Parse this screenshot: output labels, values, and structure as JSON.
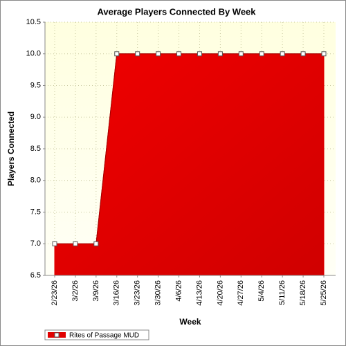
{
  "chart_data": {
    "type": "area",
    "title": "Average Players Connected By Week",
    "x_label": "Week",
    "y_label": "Players Connected",
    "categories": [
      "2/23/26",
      "3/2/26",
      "3/9/26",
      "3/16/26",
      "3/23/26",
      "3/30/26",
      "4/6/26",
      "4/13/26",
      "4/20/26",
      "4/27/26",
      "5/4/26",
      "5/11/26",
      "5/18/26",
      "5/25/26"
    ],
    "series": [
      {
        "name": "Rites of Passage MUD",
        "color": "#e00000",
        "values": [
          7,
          7,
          7,
          10,
          10,
          10,
          10,
          10,
          10,
          10,
          10,
          10,
          10,
          10
        ]
      }
    ],
    "ylim": [
      6.5,
      10.5
    ],
    "yticks": [
      6.5,
      {
        "value": 7,
        "label": "7.0"
      },
      7.5,
      {
        "value": 8,
        "label": "8.0"
      },
      8.5,
      {
        "value": 9,
        "label": "9.0"
      },
      9.5,
      {
        "value": 10,
        "label": "10.0"
      },
      10.5
    ],
    "grid": true,
    "legend": "bottom-left"
  }
}
